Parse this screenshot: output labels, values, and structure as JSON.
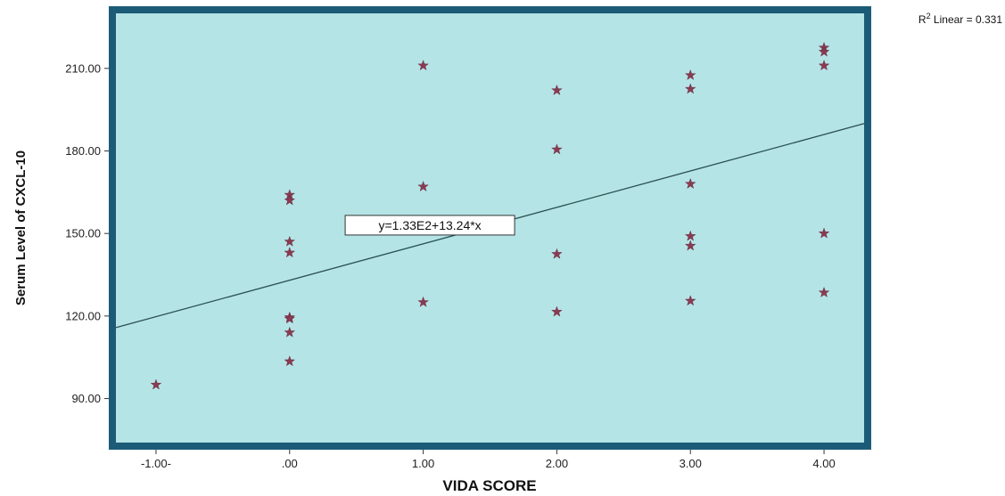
{
  "chart_data": {
    "type": "scatter",
    "title": "",
    "xlabel": "VIDA SCORE",
    "ylabel": "Serum Level of CXCL-10",
    "xlim": [
      -1.3,
      4.3
    ],
    "ylim": [
      74,
      230
    ],
    "x_ticks": [
      {
        "value": -1,
        "label": "-1.00-"
      },
      {
        "value": 0,
        "label": ".00"
      },
      {
        "value": 1,
        "label": "1.00"
      },
      {
        "value": 2,
        "label": "2.00"
      },
      {
        "value": 3,
        "label": "3.00"
      },
      {
        "value": 4,
        "label": "4.00"
      }
    ],
    "y_ticks": [
      {
        "value": 90,
        "label": "90.00"
      },
      {
        "value": 120,
        "label": "120.00"
      },
      {
        "value": 150,
        "label": "150.00"
      },
      {
        "value": 180,
        "label": "180.00"
      },
      {
        "value": 210,
        "label": "210.00"
      }
    ],
    "points": [
      {
        "x": -1,
        "y": 95
      },
      {
        "x": 0,
        "y": 164
      },
      {
        "x": 0,
        "y": 162
      },
      {
        "x": 0,
        "y": 147
      },
      {
        "x": 0,
        "y": 143
      },
      {
        "x": 0,
        "y": 119.5
      },
      {
        "x": 0,
        "y": 119
      },
      {
        "x": 0,
        "y": 114
      },
      {
        "x": 0,
        "y": 103.5
      },
      {
        "x": 1,
        "y": 211
      },
      {
        "x": 1,
        "y": 167
      },
      {
        "x": 1,
        "y": 125
      },
      {
        "x": 2,
        "y": 202
      },
      {
        "x": 2,
        "y": 180.5
      },
      {
        "x": 2,
        "y": 142.5
      },
      {
        "x": 2,
        "y": 121.5
      },
      {
        "x": 3,
        "y": 207.5
      },
      {
        "x": 3,
        "y": 202.5
      },
      {
        "x": 3,
        "y": 168
      },
      {
        "x": 3,
        "y": 149
      },
      {
        "x": 3,
        "y": 145.5
      },
      {
        "x": 3,
        "y": 125.5
      },
      {
        "x": 4,
        "y": 217.5
      },
      {
        "x": 4,
        "y": 216
      },
      {
        "x": 4,
        "y": 211
      },
      {
        "x": 4,
        "y": 150
      },
      {
        "x": 4,
        "y": 128.5
      }
    ],
    "fit_line": {
      "intercept": 133,
      "slope": 13.24,
      "x_range": [
        -1.3,
        4.3
      ]
    },
    "equation_label": {
      "text": "y=1.33E2+13.24*x",
      "x": 1.05,
      "y": 153
    },
    "r2_label": "R² Linear = 0.331",
    "grid": false,
    "colors": {
      "plot_background": "#b4e4e6",
      "frame": "#1c5b78",
      "marker": "#8a3b52",
      "fit_line": "#2a5050"
    },
    "marker_icon": "star-marker-icon"
  }
}
